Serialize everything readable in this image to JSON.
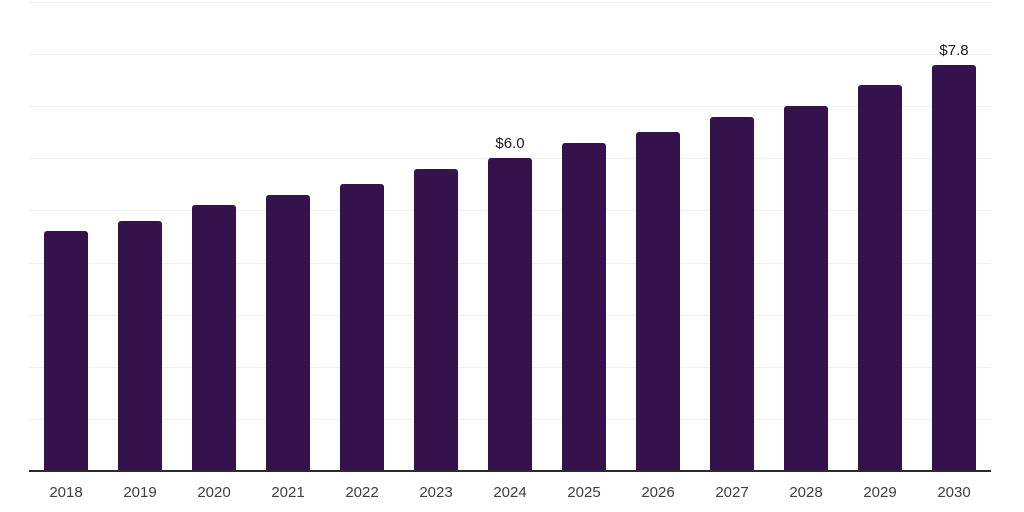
{
  "chart_data": {
    "type": "bar",
    "title": "",
    "xlabel": "",
    "ylabel": "",
    "categories": [
      "2018",
      "2019",
      "2020",
      "2021",
      "2022",
      "2023",
      "2024",
      "2025",
      "2026",
      "2027",
      "2028",
      "2029",
      "2030"
    ],
    "values": [
      4.6,
      4.8,
      5.1,
      5.3,
      5.5,
      5.8,
      6.0,
      6.3,
      6.5,
      6.8,
      7.0,
      7.4,
      7.8
    ],
    "ylim": [
      0,
      9
    ],
    "grid": "horizontal",
    "grid_interval": 1,
    "legend": "none",
    "y_axis_ticks_visible": false,
    "annotations": [
      {
        "category": "2024",
        "text": "$6.0"
      },
      {
        "category": "2030",
        "text": "$7.8"
      }
    ],
    "colors": {
      "bar": "#35124b",
      "gridline": "#f0f0f0",
      "axis_line": "#2b2b2b",
      "tick_label": "#3f3f3f",
      "data_label": "#1a1a1a",
      "background": "#ffffff"
    }
  }
}
